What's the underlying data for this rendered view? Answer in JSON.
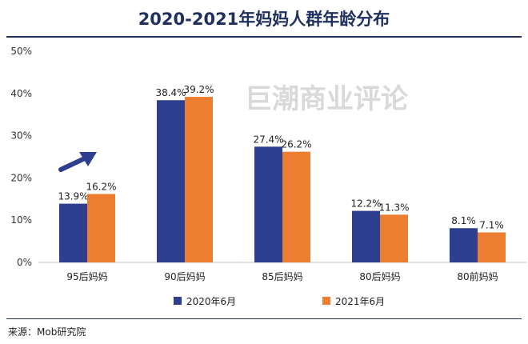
{
  "title": "2020-2021年妈妈人群年龄分布",
  "watermark": "巨潮商业评论",
  "source": "来源：Mob研究院",
  "colors": {
    "series_2020": "#2e3f8f",
    "series_2021": "#ed7d31",
    "arrow": "#2e3f8f",
    "axis": "#bfbfbf",
    "watermark": "#d9d9d9"
  },
  "chart_data": {
    "type": "bar",
    "title": "2020-2021年妈妈人群年龄分布",
    "categories": [
      "95后妈妈",
      "90后妈妈",
      "85后妈妈",
      "80后妈妈",
      "80前妈妈"
    ],
    "series": [
      {
        "name": "2020年6月",
        "values": [
          13.9,
          38.4,
          27.4,
          12.2,
          8.1
        ],
        "labels": [
          "13.9%",
          "38.4%",
          "27.4%",
          "12.2%",
          "8.1%"
        ]
      },
      {
        "name": "2021年6月",
        "values": [
          16.2,
          39.2,
          26.2,
          11.3,
          7.1
        ],
        "labels": [
          "16.2%",
          "39.2%",
          "26.2%",
          "11.3%",
          "7.1%"
        ]
      }
    ],
    "ylim": [
      0,
      50
    ],
    "yticks": [
      0,
      10,
      20,
      30,
      40,
      50
    ],
    "ytick_labels": [
      "0%",
      "10%",
      "20%",
      "30%",
      "40%",
      "50%"
    ],
    "xlabel": "",
    "ylabel": "",
    "grid": false,
    "legend_position": "bottom"
  }
}
